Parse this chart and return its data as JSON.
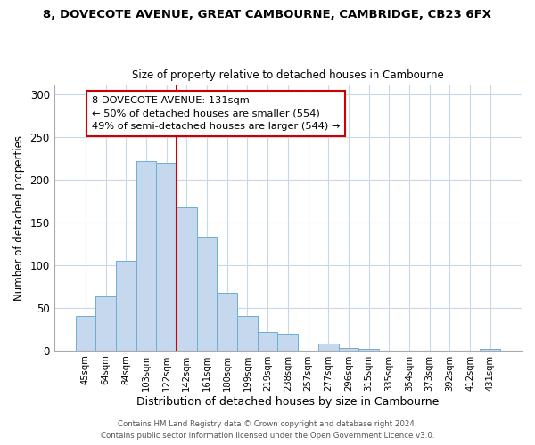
{
  "title1": "8, DOVECOTE AVENUE, GREAT CAMBOURNE, CAMBRIDGE, CB23 6FX",
  "title2": "Size of property relative to detached houses in Cambourne",
  "xlabel": "Distribution of detached houses by size in Cambourne",
  "ylabel": "Number of detached properties",
  "bar_labels": [
    "45sqm",
    "64sqm",
    "84sqm",
    "103sqm",
    "122sqm",
    "142sqm",
    "161sqm",
    "180sqm",
    "199sqm",
    "219sqm",
    "238sqm",
    "257sqm",
    "277sqm",
    "296sqm",
    "315sqm",
    "335sqm",
    "354sqm",
    "373sqm",
    "392sqm",
    "412sqm",
    "431sqm"
  ],
  "bar_values": [
    40,
    63,
    105,
    222,
    220,
    168,
    133,
    67,
    40,
    22,
    20,
    0,
    8,
    3,
    2,
    0,
    0,
    0,
    0,
    0,
    2
  ],
  "bar_color": "#c5d8ee",
  "bar_edge_color": "#6baed6",
  "vline_color": "#cc0000",
  "annotation_title": "8 DOVECOTE AVENUE: 131sqm",
  "annotation_line1": "← 50% of detached houses are smaller (554)",
  "annotation_line2": "49% of semi-detached houses are larger (544) →",
  "annotation_box_color": "white",
  "annotation_box_edge": "#cc0000",
  "ylim": [
    0,
    310
  ],
  "yticks": [
    0,
    50,
    100,
    150,
    200,
    250,
    300
  ],
  "footer1": "Contains HM Land Registry data © Crown copyright and database right 2024.",
  "footer2": "Contains public sector information licensed under the Open Government Licence v3.0."
}
